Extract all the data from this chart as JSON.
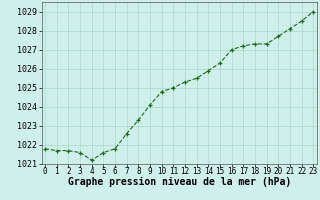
{
  "x": [
    0,
    1,
    2,
    3,
    4,
    5,
    6,
    7,
    8,
    9,
    10,
    11,
    12,
    13,
    14,
    15,
    16,
    17,
    18,
    19,
    20,
    21,
    22,
    23
  ],
  "y": [
    1021.8,
    1021.7,
    1021.7,
    1021.6,
    1021.2,
    1021.6,
    1021.8,
    1022.6,
    1023.3,
    1024.1,
    1024.8,
    1025.0,
    1025.3,
    1025.5,
    1025.9,
    1026.3,
    1027.0,
    1027.2,
    1027.3,
    1027.3,
    1027.7,
    1028.1,
    1028.5,
    1029.0
  ],
  "line_color": "#1a6b1a",
  "marker_color": "#1a6b1a",
  "bg_color": "#cff0ea",
  "grid_color": "#aad8cc",
  "xlabel": "Graphe pression niveau de la mer (hPa)",
  "xlabel_fontsize": 7,
  "ytick_fontsize": 6,
  "xtick_fontsize": 5.5,
  "ylim": [
    1021.0,
    1029.5
  ],
  "yticks": [
    1021,
    1022,
    1023,
    1024,
    1025,
    1026,
    1027,
    1028,
    1029
  ],
  "xlim": [
    -0.3,
    23.3
  ],
  "xticks": [
    0,
    1,
    2,
    3,
    4,
    5,
    6,
    7,
    8,
    9,
    10,
    11,
    12,
    13,
    14,
    15,
    16,
    17,
    18,
    19,
    20,
    21,
    22,
    23
  ]
}
